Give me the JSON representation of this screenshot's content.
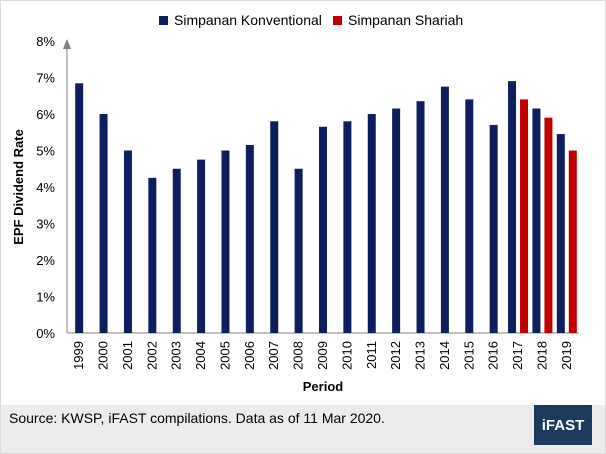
{
  "chart_data": {
    "type": "bar",
    "title": "",
    "xlabel": "Period",
    "ylabel": "EPF Dividend Rate",
    "ylim": [
      0,
      8
    ],
    "yticks": [
      "0%",
      "1%",
      "2%",
      "3%",
      "4%",
      "5%",
      "6%",
      "7%",
      "8%"
    ],
    "grid": false,
    "legend_position": "top",
    "categories": [
      "1999",
      "2000",
      "2001",
      "2002",
      "2003",
      "2004",
      "2005",
      "2006",
      "2007",
      "2008",
      "2009",
      "2010",
      "2011",
      "2012",
      "2013",
      "2014",
      "2015",
      "2016",
      "2017",
      "2018",
      "2019"
    ],
    "series": [
      {
        "name": "Simpanan Konventional",
        "color": "#0d1f5c",
        "values": [
          6.84,
          6.0,
          5.0,
          4.25,
          4.5,
          4.75,
          5.0,
          5.15,
          5.8,
          4.5,
          5.65,
          5.8,
          6.0,
          6.15,
          6.35,
          6.75,
          6.4,
          5.7,
          6.9,
          6.15,
          5.45
        ]
      },
      {
        "name": "Simpanan Shariah",
        "color": "#c00000",
        "values": [
          null,
          null,
          null,
          null,
          null,
          null,
          null,
          null,
          null,
          null,
          null,
          null,
          null,
          null,
          null,
          null,
          null,
          null,
          6.4,
          5.9,
          5.0
        ]
      }
    ]
  },
  "footer": {
    "source": "Source: KWSP, iFAST compilations. Data as of 11 Mar 2020.",
    "brand": "iFAST",
    "background": "#ececec",
    "brand_background": "#1c3a5e"
  }
}
